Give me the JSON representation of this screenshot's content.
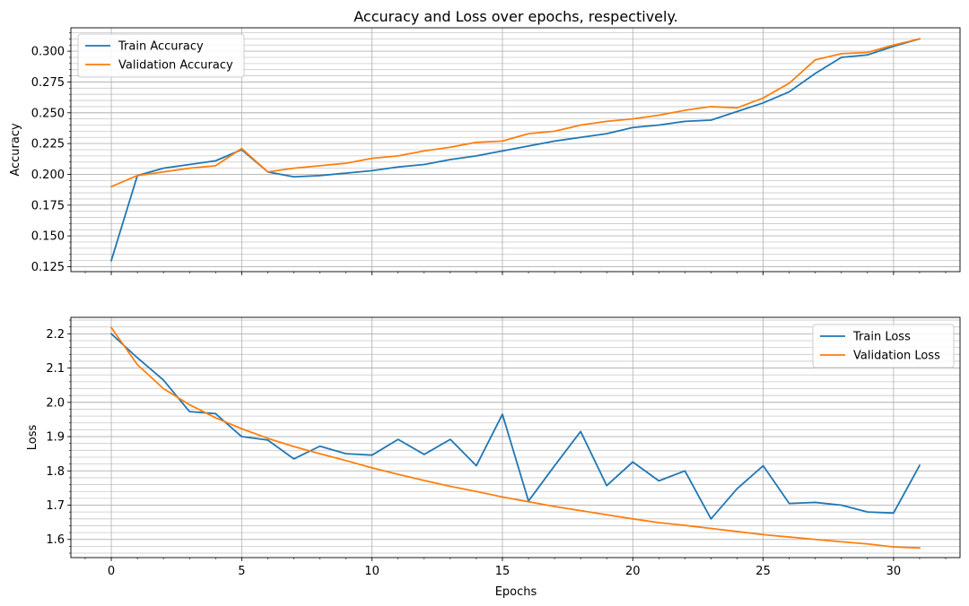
{
  "chart_data": [
    {
      "type": "line",
      "title": "Accuracy and Loss over epochs, respectively.",
      "xlabel": "",
      "ylabel": "Accuracy",
      "xlim": [
        -1.55,
        32.55
      ],
      "ylim": [
        0.121,
        0.319
      ],
      "xticks": [
        0,
        5,
        10,
        15,
        20,
        25,
        30
      ],
      "yticks": [
        0.125,
        0.15,
        0.175,
        0.2,
        0.225,
        0.25,
        0.275,
        0.3
      ],
      "ytick_labels": [
        "0.125",
        "0.150",
        "0.175",
        "0.200",
        "0.225",
        "0.250",
        "0.275",
        "0.300"
      ],
      "grid": true,
      "legend": "upper-left",
      "x": [
        0,
        1,
        2,
        3,
        4,
        5,
        6,
        7,
        8,
        9,
        10,
        11,
        12,
        13,
        14,
        15,
        16,
        17,
        18,
        19,
        20,
        21,
        22,
        23,
        24,
        25,
        26,
        27,
        28,
        29,
        30,
        31
      ],
      "series": [
        {
          "name": "Train Accuracy",
          "color": "#1f77b4",
          "values": [
            0.13,
            0.199,
            0.205,
            0.208,
            0.211,
            0.22,
            0.202,
            0.198,
            0.199,
            0.201,
            0.203,
            0.206,
            0.208,
            0.212,
            0.215,
            0.219,
            0.223,
            0.227,
            0.23,
            0.233,
            0.238,
            0.24,
            0.243,
            0.244,
            0.251,
            0.258,
            0.267,
            0.282,
            0.295,
            0.297,
            0.304,
            0.31
          ]
        },
        {
          "name": "Validation Accuracy",
          "color": "#ff7f0e",
          "values": [
            0.19,
            0.199,
            0.202,
            0.205,
            0.207,
            0.221,
            0.202,
            0.205,
            0.207,
            0.209,
            0.213,
            0.215,
            0.219,
            0.222,
            0.226,
            0.227,
            0.233,
            0.235,
            0.24,
            0.243,
            0.245,
            0.248,
            0.252,
            0.255,
            0.254,
            0.262,
            0.274,
            0.293,
            0.298,
            0.299,
            0.305,
            0.31
          ]
        }
      ]
    },
    {
      "type": "line",
      "title": "",
      "xlabel": "Epochs",
      "ylabel": "Loss",
      "xlim": [
        -1.55,
        32.55
      ],
      "ylim": [
        1.547,
        2.248
      ],
      "xticks": [
        0,
        5,
        10,
        15,
        20,
        25,
        30
      ],
      "yticks": [
        1.6,
        1.7,
        1.8,
        1.9,
        2.0,
        2.1,
        2.2
      ],
      "ytick_labels": [
        "1.6",
        "1.7",
        "1.8",
        "1.9",
        "2.0",
        "2.1",
        "2.2"
      ],
      "grid": true,
      "legend": "upper-right",
      "x": [
        0,
        1,
        2,
        3,
        4,
        5,
        6,
        7,
        8,
        9,
        10,
        11,
        12,
        13,
        14,
        15,
        16,
        17,
        18,
        19,
        20,
        21,
        22,
        23,
        24,
        25,
        26,
        27,
        28,
        29,
        30,
        31
      ],
      "series": [
        {
          "name": "Train Loss",
          "color": "#1f77b4",
          "values": [
            2.2,
            2.13,
            2.065,
            1.973,
            1.967,
            1.9,
            1.89,
            1.835,
            1.872,
            1.85,
            1.846,
            1.892,
            1.848,
            1.892,
            1.815,
            1.965,
            1.712,
            1.815,
            1.915,
            1.757,
            1.826,
            1.771,
            1.8,
            1.66,
            1.748,
            1.815,
            1.705,
            1.708,
            1.7,
            1.68,
            1.677,
            1.816
          ]
        },
        {
          "name": "Validation Loss",
          "color": "#ff7f0e",
          "values": [
            2.218,
            2.11,
            2.04,
            1.993,
            1.955,
            1.923,
            1.895,
            1.871,
            1.85,
            1.83,
            1.809,
            1.79,
            1.772,
            1.755,
            1.74,
            1.724,
            1.71,
            1.696,
            1.684,
            1.672,
            1.66,
            1.649,
            1.641,
            1.632,
            1.623,
            1.614,
            1.607,
            1.6,
            1.593,
            1.587,
            1.578,
            1.575
          ]
        }
      ]
    }
  ]
}
